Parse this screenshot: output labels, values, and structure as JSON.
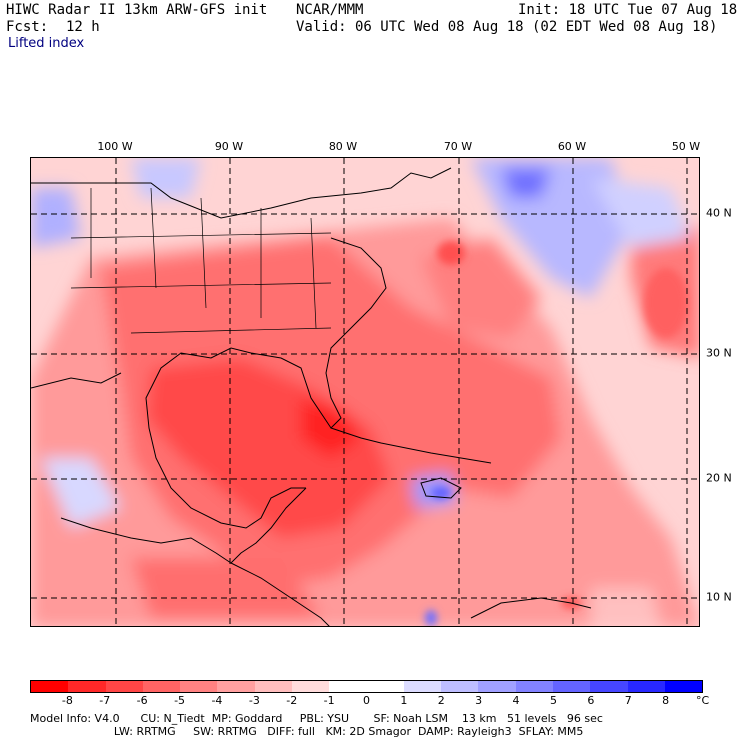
{
  "header": {
    "title": "HIWC Radar II 13km ARW-GFS init",
    "org": "NCAR/MMM",
    "init": "Init: 18 UTC Tue 07 Aug 18",
    "fcst_label": "Fcst:",
    "fcst_value": "12 h",
    "valid": "Valid: 06 UTC Wed 08 Aug 18 (02 EDT Wed 08 Aug 18)",
    "field": "Lifted index"
  },
  "map": {
    "lon_labels": [
      "100 W",
      "90 W",
      "80 W",
      "70 W",
      "60 W",
      "50 W"
    ],
    "lat_labels": [
      "40 N",
      "30 N",
      "20 N",
      "10 N"
    ]
  },
  "colorbar": {
    "ticks": [
      "-8",
      "-7",
      "-6",
      "-5",
      "-4",
      "-3",
      "-2",
      "-1",
      "0",
      "1",
      "2",
      "3",
      "4",
      "5",
      "6",
      "7",
      "8"
    ],
    "unit": "°C",
    "colors": [
      "#ff0000",
      "#ff2828",
      "#ff4646",
      "#ff6464",
      "#ff8282",
      "#ffa0a0",
      "#ffbebe",
      "#ffdcdc",
      "#ffffff",
      "#ffffff",
      "#dcdcff",
      "#bebeff",
      "#a0a0ff",
      "#8282ff",
      "#6464ff",
      "#4646ff",
      "#2828ff",
      "#0000ff"
    ]
  },
  "footer": {
    "line1": "Model Info: V4.0      CU: N_Tiedt  MP: Goddard     PBL: YSU       SF: Noah LSM    13 km   51 levels   96 sec",
    "line2": "                        LW: RRTMG     SW: RRTMG   DIFF: full   KM: 2D Smagor  DAMP: Rayleigh3  SFLAY: MM5"
  }
}
